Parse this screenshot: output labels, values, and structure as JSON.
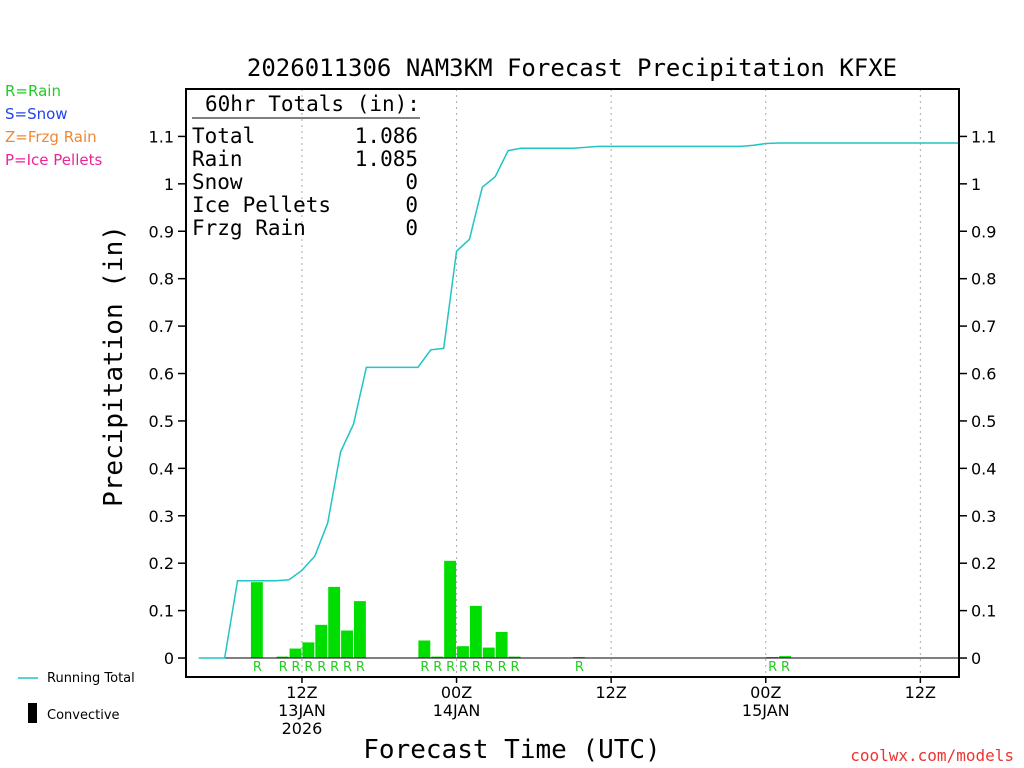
{
  "chart_data": {
    "type": "bar",
    "title": "2026011306 NAM3KM Forecast Precipitation KFXE",
    "ylabel": "Precipitation (in)",
    "xlabel": "Forecast Time (UTC)",
    "ylim": [
      -0.04,
      1.2
    ],
    "xlim": [
      -3,
      57
    ],
    "y_ticks": [
      {
        "value": 0,
        "label": "0"
      },
      {
        "value": 0.1,
        "label": "0.1"
      },
      {
        "value": 0.2,
        "label": "0.2"
      },
      {
        "value": 0.3,
        "label": "0.3"
      },
      {
        "value": 0.4,
        "label": "0.4"
      },
      {
        "value": 0.5,
        "label": "0.5"
      },
      {
        "value": 0.6,
        "label": "0.6"
      },
      {
        "value": 0.7,
        "label": "0.7"
      },
      {
        "value": 0.8,
        "label": "0.8"
      },
      {
        "value": 0.9,
        "label": "0.9"
      },
      {
        "value": 1.0,
        "label": "1"
      },
      {
        "value": 1.1,
        "label": "1.1"
      }
    ],
    "x_ticks": [
      {
        "hour": 6,
        "lines": [
          "12Z",
          "13JAN",
          "2026"
        ]
      },
      {
        "hour": 18,
        "lines": [
          "00Z",
          "14JAN"
        ]
      },
      {
        "hour": 30,
        "lines": [
          "12Z"
        ]
      },
      {
        "hour": 42,
        "lines": [
          "00Z",
          "15JAN"
        ]
      },
      {
        "hour": 54,
        "lines": [
          "12Z"
        ]
      }
    ],
    "series": [
      {
        "name": "Hourly precipitation",
        "points": [
          {
            "hour": 3,
            "value": 0.16,
            "type": "R"
          },
          {
            "hour": 5,
            "value": 0.003,
            "type": "R"
          },
          {
            "hour": 6,
            "value": 0.02,
            "type": "R"
          },
          {
            "hour": 7,
            "value": 0.033,
            "type": "R"
          },
          {
            "hour": 8,
            "value": 0.07,
            "type": "R"
          },
          {
            "hour": 9,
            "value": 0.15,
            "type": "R"
          },
          {
            "hour": 10,
            "value": 0.058,
            "type": "R"
          },
          {
            "hour": 11,
            "value": 0.12,
            "type": "R"
          },
          {
            "hour": 16,
            "value": 0.037,
            "type": "R"
          },
          {
            "hour": 17,
            "value": 0.003,
            "type": "R"
          },
          {
            "hour": 18,
            "value": 0.205,
            "type": "R"
          },
          {
            "hour": 19,
            "value": 0.025,
            "type": "R"
          },
          {
            "hour": 20,
            "value": 0.11,
            "type": "R"
          },
          {
            "hour": 21,
            "value": 0.022,
            "type": "R"
          },
          {
            "hour": 22,
            "value": 0.055,
            "type": "R"
          },
          {
            "hour": 23,
            "value": 0.003,
            "type": "R"
          },
          {
            "hour": 28,
            "value": 0.002,
            "type": "R"
          },
          {
            "hour": 43,
            "value": 0.002,
            "type": "R"
          },
          {
            "hour": 44,
            "value": 0.004,
            "type": "R"
          }
        ]
      },
      {
        "name": "Running Total",
        "x": [
          -2,
          -1,
          0,
          1,
          2,
          3,
          4,
          5,
          6,
          7,
          8,
          9,
          10,
          11,
          12,
          13,
          14,
          15,
          16,
          17,
          18,
          19,
          20,
          21,
          22,
          23,
          24,
          25,
          26,
          27,
          28,
          29,
          30,
          31,
          32,
          33,
          34,
          35,
          36,
          37,
          38,
          39,
          40,
          41,
          42,
          43,
          44,
          45,
          46,
          47,
          48,
          49,
          50,
          51,
          52,
          53,
          54,
          55,
          56,
          57
        ],
        "values": [
          0,
          0,
          0,
          0.163,
          0.163,
          0.163,
          0.163,
          0.165,
          0.185,
          0.215,
          0.285,
          0.435,
          0.493,
          0.613,
          0.613,
          0.613,
          0.613,
          0.613,
          0.65,
          0.653,
          0.858,
          0.883,
          0.993,
          1.015,
          1.07,
          1.075,
          1.075,
          1.075,
          1.075,
          1.075,
          1.077,
          1.079,
          1.079,
          1.079,
          1.079,
          1.079,
          1.079,
          1.079,
          1.079,
          1.079,
          1.079,
          1.079,
          1.079,
          1.081,
          1.085,
          1.086,
          1.086,
          1.086,
          1.086,
          1.086,
          1.086,
          1.086,
          1.086,
          1.086,
          1.086,
          1.086,
          1.086,
          1.086,
          1.086,
          1.086
        ]
      }
    ]
  },
  "totals_box": {
    "header": "60hr Totals (in):",
    "rows": [
      {
        "label": "Total",
        "value": "1.086"
      },
      {
        "label": "Rain",
        "value": "1.085"
      },
      {
        "label": "Snow",
        "value": "0"
      },
      {
        "label": "Ice Pellets",
        "value": "0"
      },
      {
        "label": "Frzg Rain",
        "value": "0"
      }
    ]
  },
  "type_legend": [
    {
      "text": "R=Rain",
      "color": "#22cc22"
    },
    {
      "text": "S=Snow",
      "color": "#2244ee"
    },
    {
      "text": "Z=Frzg Rain",
      "color": "#ee8833"
    },
    {
      "text": "P=Ice Pellets",
      "color": "#ee2299"
    }
  ],
  "line_legend": {
    "running_total": "Running Total",
    "convective": "Convective"
  },
  "credit": "coolwx.com/models",
  "colors": {
    "bar": "#00dd00",
    "line": "#22c4c4",
    "grid": "#aaaaaa",
    "type_label": "#22cc22",
    "credit": "#ee3333"
  }
}
